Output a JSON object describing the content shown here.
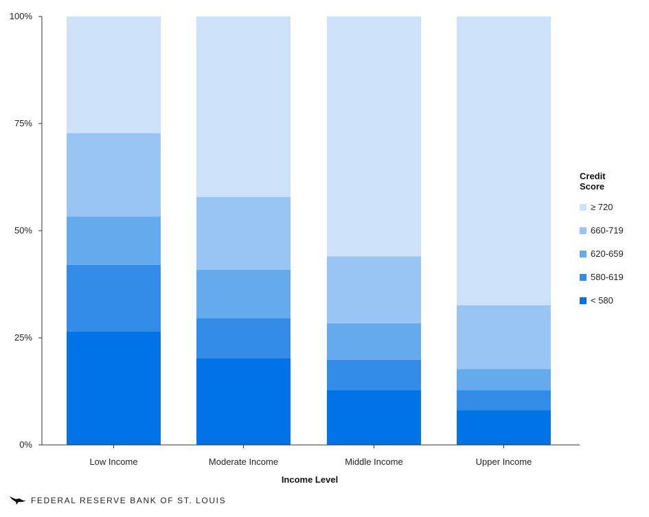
{
  "chart_data": {
    "type": "bar",
    "stacked": true,
    "categories": [
      "Low Income",
      "Moderate Income",
      "Middle Income",
      "Upper Income"
    ],
    "series": [
      {
        "name": "< 580",
        "color": "#0073e6",
        "values": [
          26.5,
          20.2,
          12.8,
          8.1
        ]
      },
      {
        "name": "580-619",
        "color": "#348ce9",
        "values": [
          15.5,
          9.4,
          7.1,
          4.7
        ]
      },
      {
        "name": "620-659",
        "color": "#66aaee",
        "values": [
          11.3,
          11.3,
          8.5,
          4.9
        ]
      },
      {
        "name": "660-719",
        "color": "#99c5f5",
        "values": [
          19.5,
          17.0,
          15.6,
          14.9
        ]
      },
      {
        "name": "≥ 720",
        "color": "#cde2f9",
        "values": [
          27.2,
          42.1,
          56.0,
          67.4
        ]
      }
    ],
    "xlabel": "Income Level",
    "ylabel": "",
    "ylim": [
      0,
      100
    ],
    "yticks": [
      "0%",
      "25%",
      "50%",
      "75%",
      "100%"
    ],
    "grid": false,
    "legend_title": "Credit Score",
    "legend_position": "right"
  },
  "footer": {
    "text": "FEDERAL RESERVE BANK OF ST. LOUIS",
    "icon": "eagle-icon"
  }
}
